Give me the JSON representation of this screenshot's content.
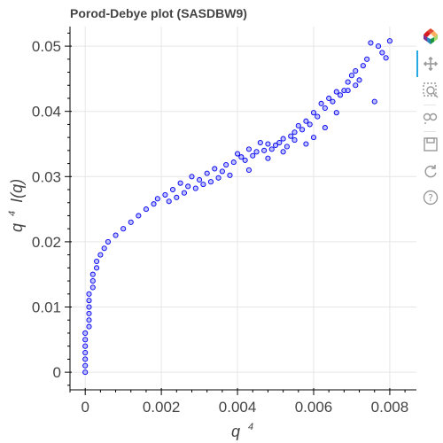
{
  "chart_data": {
    "type": "scatter",
    "title": "Porod-Debye plot (SASDBW9)",
    "xlabel": {
      "base": "q",
      "sup": "4"
    },
    "ylabel": {
      "base": "q",
      "sup": "4",
      "rest": "I(q)"
    },
    "xlim": [
      -0.0004,
      0.0087
    ],
    "ylim": [
      -0.0027,
      0.053
    ],
    "x_ticks": [
      {
        "value": 0,
        "label": "0"
      },
      {
        "value": 0.002,
        "label": "0.002"
      },
      {
        "value": 0.004,
        "label": "0.004"
      },
      {
        "value": 0.006,
        "label": "0.006"
      },
      {
        "value": 0.008,
        "label": "0.008"
      }
    ],
    "y_ticks": [
      {
        "value": 0,
        "label": "0"
      },
      {
        "value": 0.01,
        "label": "0.01"
      },
      {
        "value": 0.02,
        "label": "0.02"
      },
      {
        "value": 0.03,
        "label": "0.03"
      },
      {
        "value": 0.04,
        "label": "0.04"
      },
      {
        "value": 0.05,
        "label": "0.05"
      }
    ],
    "grid": true,
    "marker": {
      "fill": "#8c8cff",
      "stroke": "#0000ee",
      "fill_opacity": 0.55
    },
    "series": [
      {
        "points": [
          [
            0.0,
            0.0
          ],
          [
            0.0,
            0.001
          ],
          [
            0.0,
            0.002
          ],
          [
            0.0,
            0.003
          ],
          [
            0.0,
            0.004
          ],
          [
            0.0,
            0.005
          ],
          [
            0.0,
            0.006
          ],
          [
            0.0001,
            0.007
          ],
          [
            0.0001,
            0.008
          ],
          [
            0.0001,
            0.009
          ],
          [
            0.0001,
            0.01
          ],
          [
            0.0001,
            0.011
          ],
          [
            0.0001,
            0.012
          ],
          [
            0.0002,
            0.013
          ],
          [
            0.0002,
            0.014
          ],
          [
            0.0002,
            0.015
          ],
          [
            0.0003,
            0.016
          ],
          [
            0.0003,
            0.017
          ],
          [
            0.0004,
            0.018
          ],
          [
            0.0005,
            0.019
          ],
          [
            0.0006,
            0.02
          ],
          [
            0.0008,
            0.021
          ],
          [
            0.001,
            0.022
          ],
          [
            0.0012,
            0.023
          ],
          [
            0.0014,
            0.024
          ],
          [
            0.0016,
            0.025
          ],
          [
            0.0018,
            0.0258
          ],
          [
            0.0019,
            0.0266
          ],
          [
            0.0021,
            0.0272
          ],
          [
            0.0022,
            0.0262
          ],
          [
            0.0023,
            0.028
          ],
          [
            0.0024,
            0.0268
          ],
          [
            0.0025,
            0.029
          ],
          [
            0.0026,
            0.0275
          ],
          [
            0.0027,
            0.0285
          ],
          [
            0.0028,
            0.03
          ],
          [
            0.0029,
            0.0282
          ],
          [
            0.003,
            0.0295
          ],
          [
            0.0031,
            0.0288
          ],
          [
            0.0032,
            0.0305
          ],
          [
            0.0033,
            0.0292
          ],
          [
            0.0034,
            0.0312
          ],
          [
            0.0035,
            0.0298
          ],
          [
            0.0036,
            0.0308
          ],
          [
            0.0037,
            0.0318
          ],
          [
            0.0038,
            0.0302
          ],
          [
            0.0039,
            0.0322
          ],
          [
            0.004,
            0.0335
          ],
          [
            0.0041,
            0.033
          ],
          [
            0.0042,
            0.0325
          ],
          [
            0.0043,
            0.0342
          ],
          [
            0.0044,
            0.0332
          ],
          [
            0.0045,
            0.0338
          ],
          [
            0.0046,
            0.0352
          ],
          [
            0.0047,
            0.034
          ],
          [
            0.0048,
            0.035
          ],
          [
            0.0049,
            0.0342
          ],
          [
            0.005,
            0.0348
          ],
          [
            0.0051,
            0.0352
          ],
          [
            0.0052,
            0.0358
          ],
          [
            0.0053,
            0.0346
          ],
          [
            0.0054,
            0.0362
          ],
          [
            0.0055,
            0.0368
          ],
          [
            0.0056,
            0.0378
          ],
          [
            0.0057,
            0.0372
          ],
          [
            0.0058,
            0.0385
          ],
          [
            0.0059,
            0.038
          ],
          [
            0.006,
            0.0398
          ],
          [
            0.0061,
            0.0392
          ],
          [
            0.0062,
            0.0412
          ],
          [
            0.0063,
            0.0405
          ],
          [
            0.0064,
            0.042
          ],
          [
            0.0065,
            0.0415
          ],
          [
            0.0066,
            0.043
          ],
          [
            0.0067,
            0.0425
          ],
          [
            0.0068,
            0.0432
          ],
          [
            0.0069,
            0.0445
          ],
          [
            0.007,
            0.0455
          ],
          [
            0.0071,
            0.0462
          ],
          [
            0.0072,
            0.0448
          ],
          [
            0.0073,
            0.047
          ],
          [
            0.0074,
            0.048
          ],
          [
            0.0075,
            0.0505
          ],
          [
            0.0076,
            0.0415
          ],
          [
            0.0077,
            0.05
          ],
          [
            0.0078,
            0.049
          ],
          [
            0.0079,
            0.0482
          ],
          [
            0.008,
            0.0508
          ],
          [
            0.0043,
            0.031
          ],
          [
            0.0052,
            0.0338
          ],
          [
            0.0058,
            0.035
          ],
          [
            0.0063,
            0.0375
          ],
          [
            0.0066,
            0.0398
          ],
          [
            0.0069,
            0.0432
          ],
          [
            0.0071,
            0.044
          ],
          [
            0.006,
            0.036
          ],
          [
            0.0055,
            0.0356
          ],
          [
            0.0048,
            0.0328
          ]
        ]
      }
    ]
  },
  "toolbar": {
    "items": [
      {
        "icon": "bokeh-logo-icon"
      },
      {
        "icon": "pan-icon"
      },
      {
        "icon": "box-zoom-icon"
      },
      {
        "icon": "wheel-zoom-icon"
      },
      {
        "icon": "save-icon"
      },
      {
        "icon": "reset-icon"
      },
      {
        "icon": "help-icon"
      }
    ]
  }
}
